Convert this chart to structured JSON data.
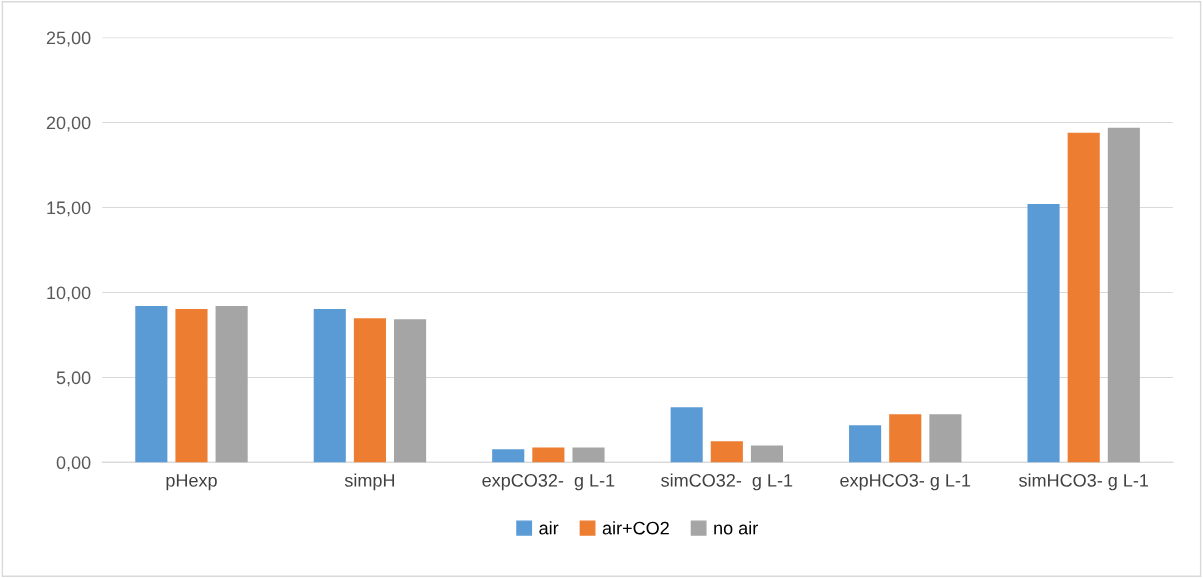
{
  "chart_data": {
    "type": "bar",
    "categories": [
      "pHexp",
      "simpH",
      "expCO32-  g L-1",
      "simCO32-  g L-1",
      "expHCO3- g L-1",
      "simHCO3- g L-1"
    ],
    "series": [
      {
        "name": "air",
        "color": "#5b9bd5",
        "values": [
          9.2,
          9.02,
          0.77,
          3.24,
          2.18,
          15.21
        ]
      },
      {
        "name": "air+CO2",
        "color": "#ed7d31",
        "values": [
          9.02,
          8.49,
          0.88,
          1.24,
          2.83,
          19.4
        ]
      },
      {
        "name": "no air",
        "color": "#a5a5a5",
        "values": [
          9.2,
          8.43,
          0.88,
          1.0,
          2.83,
          19.69
        ]
      }
    ],
    "ylim": [
      0,
      25
    ],
    "yticks": [
      {
        "value": 0,
        "label": "0,00"
      },
      {
        "value": 5,
        "label": "5,00"
      },
      {
        "value": 10,
        "label": "10,00"
      },
      {
        "value": 15,
        "label": "15,00"
      },
      {
        "value": 20,
        "label": "20,00"
      },
      {
        "value": 25,
        "label": "25,00"
      }
    ],
    "grid": "y",
    "legend": "bottom"
  }
}
